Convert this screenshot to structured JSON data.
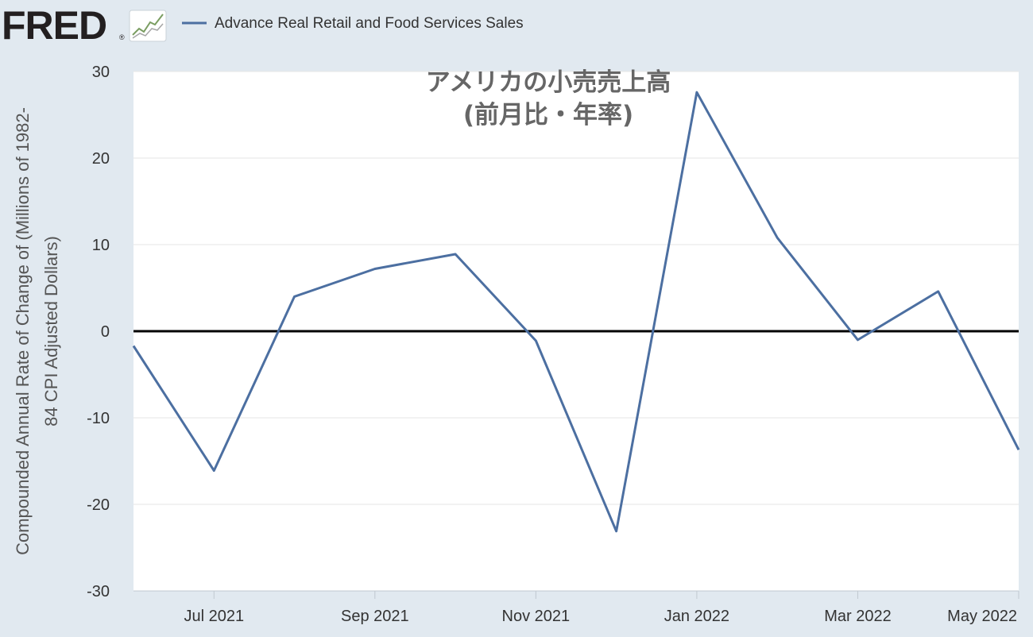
{
  "header": {
    "logo_text": "FRED",
    "logo_registered": "®",
    "logo_icon": "sparkline-chart-icon",
    "legend_label": "Advance Real Retail and Food Services Sales",
    "legend_color": "#4c6fa1"
  },
  "colors": {
    "background": "#e1e9f0",
    "plot_background": "#ffffff",
    "series": "#4c6fa1",
    "zero_line": "#000000",
    "grid": "#e6e6e6",
    "title": "#666666",
    "axis_text": "#333333"
  },
  "chart_data": {
    "type": "line",
    "title": "アメリカの小売売上高",
    "subtitle": "(前月比・年率)",
    "ylabel": "Compounded Annual Rate of Change of (Millions of 1982-84 CPI Adjusted Dollars)",
    "ylabel_lines": [
      "Compounded Annual Rate of Change of (Millions of 1982-",
      "84 CPI Adjusted Dollars)"
    ],
    "xlabel": "",
    "ylim": [
      -30,
      30
    ],
    "yticks": [
      -30,
      -20,
      -10,
      0,
      10,
      20,
      30
    ],
    "grid": true,
    "zero_line": true,
    "x": [
      "2021-06",
      "2021-07",
      "2021-08",
      "2021-09",
      "2021-10",
      "2021-11",
      "2021-12",
      "2022-01",
      "2022-02",
      "2022-03",
      "2022-04",
      "2022-05"
    ],
    "xticks": [
      {
        "date": "2021-07",
        "label": "Jul 2021"
      },
      {
        "date": "2021-09",
        "label": "Sep 2021"
      },
      {
        "date": "2021-11",
        "label": "Nov 2021"
      },
      {
        "date": "2022-01",
        "label": "Jan 2022"
      },
      {
        "date": "2022-03",
        "label": "Mar 2022"
      },
      {
        "date": "2022-05",
        "label": "May 2022"
      }
    ],
    "series": [
      {
        "name": "Advance Real Retail and Food Services Sales",
        "values": [
          -1.7,
          -16.1,
          4.0,
          7.2,
          8.9,
          -1.1,
          -23.1,
          27.6,
          10.8,
          -1.0,
          4.6,
          -13.7
        ]
      }
    ]
  }
}
